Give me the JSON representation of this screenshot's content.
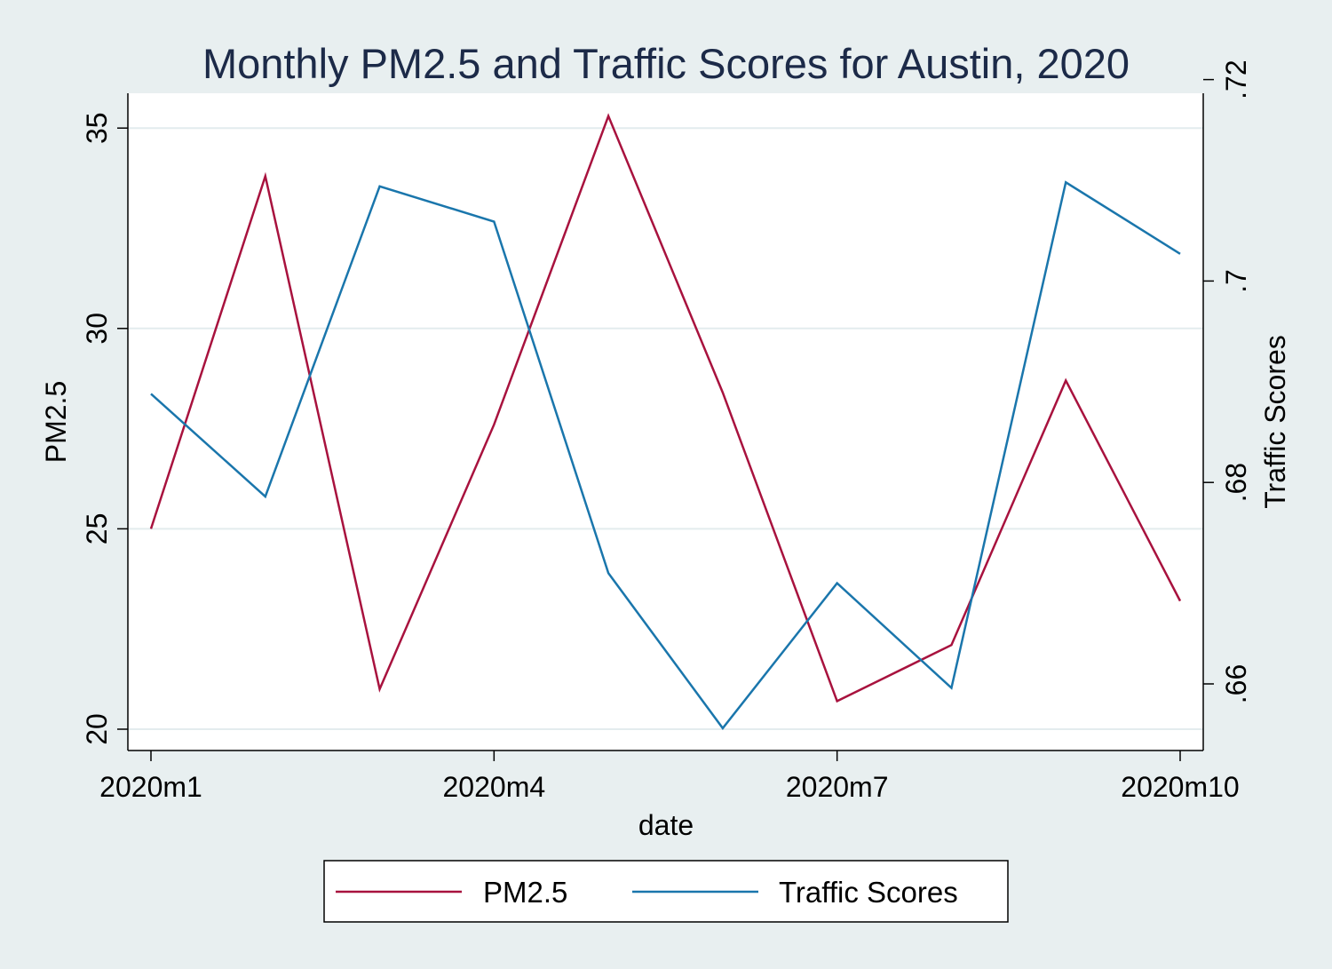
{
  "chart_data": {
    "type": "line",
    "title": "Monthly PM2.5 and Traffic Scores for Austin, 2020",
    "xlabel": "date",
    "ylabel_left": "PM2.5",
    "ylabel_right": "Traffic Scores",
    "x": [
      "2020m1",
      "2020m2",
      "2020m3",
      "2020m4",
      "2020m5",
      "2020m6",
      "2020m7",
      "2020m8",
      "2020m9",
      "2020m10"
    ],
    "x_ticks": [
      "2020m1",
      "2020m4",
      "2020m7",
      "2020m10"
    ],
    "y_left_ticks": [
      "20",
      "25",
      "30",
      "35"
    ],
    "y_right_ticks": [
      ".66",
      ".68",
      ".7",
      ".72"
    ],
    "y_left_ticks_values": [
      20,
      25,
      30,
      35
    ],
    "y_right_ticks_values": [
      0.66,
      0.68,
      0.7,
      0.72
    ],
    "ylim_left": [
      20,
      35
    ],
    "ylim_right": [
      0.656,
      0.72
    ],
    "grid": true,
    "legend_position": "bottom",
    "series": [
      {
        "name": "PM2.5",
        "axis": "left",
        "color": "#a8123e",
        "values": [
          25.0,
          33.8,
          21.0,
          27.6,
          35.3,
          28.4,
          20.7,
          22.1,
          28.7,
          23.2
        ]
      },
      {
        "name": "Traffic Scores",
        "axis": "right",
        "color": "#1a76ac",
        "values": [
          0.6888,
          0.6786,
          0.7094,
          0.7059,
          0.671,
          0.6556,
          0.67,
          0.6596,
          0.7098,
          0.7027
        ]
      }
    ]
  }
}
